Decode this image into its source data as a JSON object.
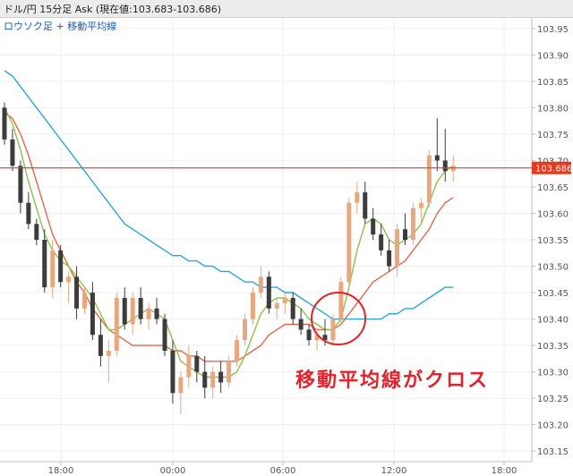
{
  "window": {
    "title": "ドル/円 15分足 Ask (現在値:103.683-103.686)"
  },
  "legend": "ロウソク足 + 移動平均線",
  "annotation": "移動平均線がクロス",
  "current_price_label": "103.686",
  "colors": {
    "candle_up": "#e8a77f",
    "candle_down": "#3c3c3c",
    "ma_short": "#8bc34a",
    "ma_mid": "#e5664a",
    "ma_long": "#29a6d9",
    "current_price": "#e5391f",
    "annotation": "#e8202a"
  },
  "chart_data": {
    "type": "candlestick",
    "x_ticks": [
      "18:00",
      "00:00",
      "06:00",
      "12:00",
      "18:00"
    ],
    "y_ticks": [
      "103.95",
      "103.90",
      "103.85",
      "103.80",
      "103.75",
      "103.70",
      "103.65",
      "103.60",
      "103.55",
      "103.50",
      "103.45",
      "103.40",
      "103.35",
      "103.30",
      "103.25",
      "103.20",
      "103.15"
    ],
    "ylim": [
      103.13,
      103.97
    ],
    "current_price": 103.686,
    "candles": [
      [
        103.8,
        103.81,
        103.73,
        103.74
      ],
      [
        103.74,
        103.76,
        103.68,
        103.69
      ],
      [
        103.69,
        103.7,
        103.6,
        103.62
      ],
      [
        103.62,
        103.64,
        103.57,
        103.58
      ],
      [
        103.58,
        103.59,
        103.54,
        103.55
      ],
      [
        103.55,
        103.57,
        103.45,
        103.46
      ],
      [
        103.46,
        103.55,
        103.44,
        103.53
      ],
      [
        103.53,
        103.54,
        103.46,
        103.47
      ],
      [
        103.47,
        103.49,
        103.43,
        103.48
      ],
      [
        103.48,
        103.5,
        103.4,
        103.42
      ],
      [
        103.42,
        103.46,
        103.41,
        103.45
      ],
      [
        103.45,
        103.47,
        103.36,
        103.37
      ],
      [
        103.37,
        103.4,
        103.31,
        103.33
      ],
      [
        103.33,
        103.36,
        103.28,
        103.34
      ],
      [
        103.34,
        103.45,
        103.33,
        103.44
      ],
      [
        103.44,
        103.46,
        103.38,
        103.39
      ],
      [
        103.39,
        103.45,
        103.37,
        103.44
      ],
      [
        103.44,
        103.46,
        103.39,
        103.4
      ],
      [
        103.4,
        103.43,
        103.38,
        103.42
      ],
      [
        103.42,
        103.44,
        103.39,
        103.4
      ],
      [
        103.4,
        103.41,
        103.33,
        103.34
      ],
      [
        103.34,
        103.36,
        103.24,
        103.26
      ],
      [
        103.26,
        103.3,
        103.22,
        103.29
      ],
      [
        103.29,
        103.35,
        103.27,
        103.33
      ],
      [
        103.33,
        103.34,
        103.28,
        103.3
      ],
      [
        103.3,
        103.33,
        103.25,
        103.27
      ],
      [
        103.27,
        103.31,
        103.25,
        103.3
      ],
      [
        103.3,
        103.32,
        103.26,
        103.28
      ],
      [
        103.28,
        103.33,
        103.27,
        103.32
      ],
      [
        103.32,
        103.37,
        103.31,
        103.36
      ],
      [
        103.36,
        103.41,
        103.35,
        103.4
      ],
      [
        103.4,
        103.46,
        103.39,
        103.45
      ],
      [
        103.45,
        103.5,
        103.44,
        103.48
      ],
      [
        103.48,
        103.49,
        103.41,
        103.42
      ],
      [
        103.42,
        103.44,
        103.4,
        103.43
      ],
      [
        103.43,
        103.45,
        103.41,
        103.44
      ],
      [
        103.44,
        103.45,
        103.39,
        103.4
      ],
      [
        103.4,
        103.42,
        103.37,
        103.38
      ],
      [
        103.38,
        103.39,
        103.35,
        103.36
      ],
      [
        103.36,
        103.38,
        103.34,
        103.37
      ],
      [
        103.37,
        103.4,
        103.35,
        103.36
      ],
      [
        103.36,
        103.41,
        103.35,
        103.4
      ],
      [
        103.4,
        103.48,
        103.39,
        103.47
      ],
      [
        103.47,
        103.63,
        103.46,
        103.62
      ],
      [
        103.62,
        103.66,
        103.6,
        103.64
      ],
      [
        103.64,
        103.66,
        103.58,
        103.59
      ],
      [
        103.59,
        103.61,
        103.55,
        103.56
      ],
      [
        103.56,
        103.58,
        103.52,
        103.53
      ],
      [
        103.53,
        103.55,
        103.49,
        103.5
      ],
      [
        103.5,
        103.58,
        103.48,
        103.57
      ],
      [
        103.57,
        103.6,
        103.54,
        103.55
      ],
      [
        103.55,
        103.62,
        103.54,
        103.61
      ],
      [
        103.61,
        103.63,
        103.58,
        103.62
      ],
      [
        103.62,
        103.72,
        103.61,
        103.71
      ],
      [
        103.71,
        103.78,
        103.68,
        103.7
      ],
      [
        103.7,
        103.76,
        103.66,
        103.68
      ],
      [
        103.68,
        103.71,
        103.66,
        103.69
      ]
    ],
    "ma_short": [
      103.8,
      103.77,
      103.72,
      103.66,
      103.61,
      103.56,
      103.53,
      103.51,
      103.5,
      103.48,
      103.46,
      103.44,
      103.41,
      103.38,
      103.38,
      103.39,
      103.4,
      103.41,
      103.42,
      103.41,
      103.4,
      103.36,
      103.32,
      103.31,
      103.3,
      103.29,
      103.29,
      103.29,
      103.29,
      103.3,
      103.33,
      103.37,
      103.41,
      103.43,
      103.44,
      103.44,
      103.43,
      103.42,
      103.4,
      103.39,
      103.38,
      103.38,
      103.4,
      103.46,
      103.53,
      103.58,
      103.59,
      103.58,
      103.55,
      103.54,
      103.55,
      103.56,
      103.58,
      103.62,
      103.66,
      103.68,
      103.69
    ],
    "ma_mid": [
      103.79,
      103.78,
      103.75,
      103.71,
      103.66,
      103.61,
      103.56,
      103.53,
      103.5,
      103.47,
      103.45,
      103.42,
      103.4,
      103.38,
      103.37,
      103.36,
      103.35,
      103.35,
      103.35,
      103.35,
      103.35,
      103.34,
      103.34,
      103.33,
      103.33,
      103.32,
      103.32,
      103.32,
      103.32,
      103.32,
      103.33,
      103.34,
      103.35,
      103.37,
      103.38,
      103.39,
      103.39,
      103.39,
      103.39,
      103.38,
      103.38,
      103.38,
      103.39,
      103.41,
      103.43,
      103.45,
      103.47,
      103.48,
      103.49,
      103.5,
      103.51,
      103.53,
      103.55,
      103.57,
      103.6,
      103.62,
      103.63
    ],
    "ma_long": [
      103.87,
      103.86,
      103.84,
      103.82,
      103.8,
      103.78,
      103.76,
      103.74,
      103.72,
      103.7,
      103.68,
      103.66,
      103.64,
      103.62,
      103.6,
      103.58,
      103.57,
      103.56,
      103.55,
      103.54,
      103.53,
      103.52,
      103.52,
      103.51,
      103.51,
      103.5,
      103.5,
      103.49,
      103.49,
      103.48,
      103.47,
      103.47,
      103.46,
      103.46,
      103.46,
      103.45,
      103.45,
      103.44,
      103.43,
      103.42,
      103.41,
      103.4,
      103.4,
      103.4,
      103.4,
      103.4,
      103.4,
      103.4,
      103.41,
      103.41,
      103.42,
      103.42,
      103.43,
      103.44,
      103.45,
      103.46,
      103.46
    ]
  }
}
